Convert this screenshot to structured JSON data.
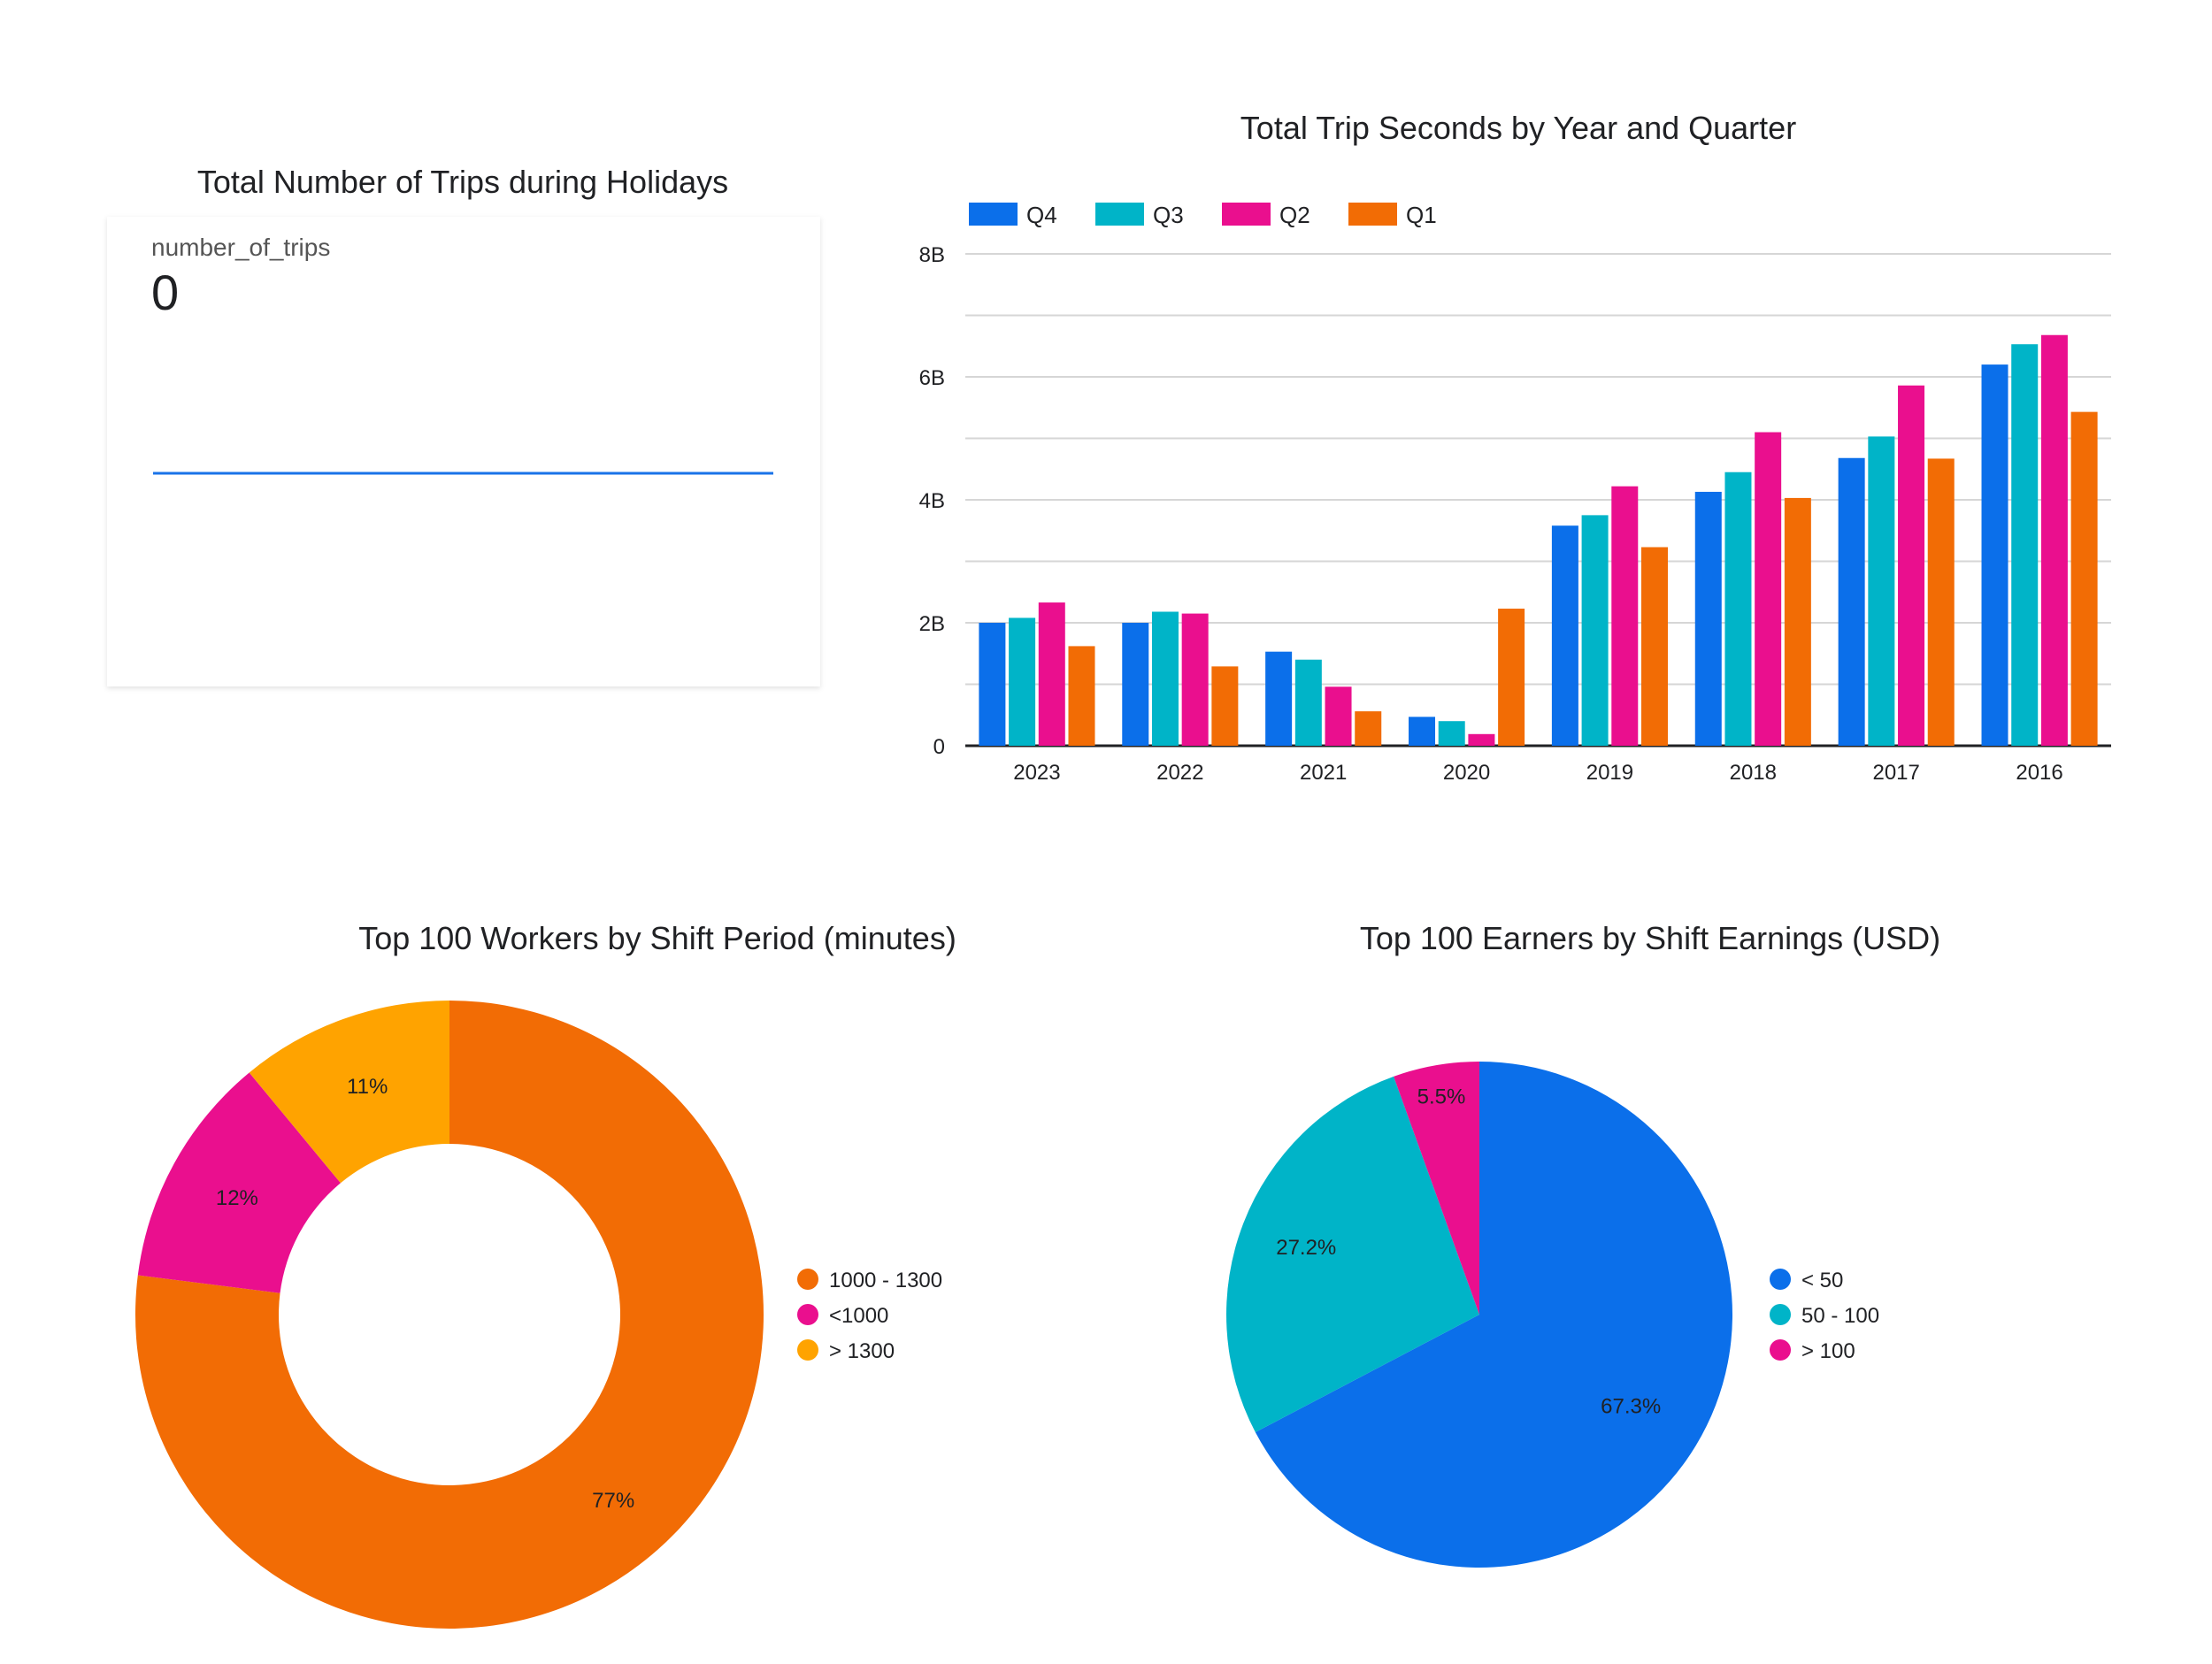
{
  "scorecard": {
    "title": "Total Number of Trips during Holidays",
    "metric_label": "number_of_trips",
    "metric_value": "0"
  },
  "chart_data": [
    {
      "type": "bar",
      "title": "Total Trip Seconds by Year and Quarter",
      "categories": [
        "2023",
        "2022",
        "2021",
        "2020",
        "2019",
        "2018",
        "2017",
        "2016"
      ],
      "series": [
        {
          "name": "Q4",
          "color": "#0B6FEA",
          "values": [
            2.0,
            2.0,
            1.53,
            0.47,
            3.58,
            4.13,
            4.68,
            6.2
          ]
        },
        {
          "name": "Q3",
          "color": "#00B4C8",
          "values": [
            2.08,
            2.18,
            1.4,
            0.4,
            3.75,
            4.45,
            5.03,
            6.53
          ]
        },
        {
          "name": "Q2",
          "color": "#EA0F8E",
          "values": [
            2.33,
            2.15,
            0.96,
            0.19,
            4.22,
            5.1,
            5.86,
            6.68
          ]
        },
        {
          "name": "Q1",
          "color": "#F26C05",
          "values": [
            1.62,
            1.29,
            0.56,
            2.23,
            3.23,
            4.03,
            4.67,
            5.43
          ]
        }
      ],
      "unit": "B",
      "ylim": [
        0,
        8
      ],
      "yticks": [
        0,
        2,
        4,
        6,
        8
      ],
      "ytick_labels": [
        "0",
        "2B",
        "4B",
        "6B",
        "8B"
      ],
      "grid": true,
      "legend_position": "top-left"
    },
    {
      "type": "pie",
      "variant": "donut",
      "title": "Top 100 Workers by Shift Period (minutes)",
      "slices": [
        {
          "label": "1000 - 1300",
          "value": 77,
          "display": "77%",
          "color": "#F26C05"
        },
        {
          "label": "<1000",
          "value": 12,
          "display": "12%",
          "color": "#EA0F8E"
        },
        {
          "label": "> 1300",
          "value": 11,
          "display": "11%",
          "color": "#FFA300"
        }
      ],
      "legend_position": "right"
    },
    {
      "type": "pie",
      "title": "Top 100 Earners by Shift Earnings (USD)",
      "slices": [
        {
          "label": "< 50",
          "value": 67.3,
          "display": "67.3%",
          "color": "#0B6FEA"
        },
        {
          "label": "50 - 100",
          "value": 27.2,
          "display": "27.2%",
          "color": "#00B4C8"
        },
        {
          "label": "> 100",
          "value": 5.5,
          "display": "5.5%",
          "color": "#EA0F8E"
        }
      ],
      "legend_position": "right"
    }
  ]
}
